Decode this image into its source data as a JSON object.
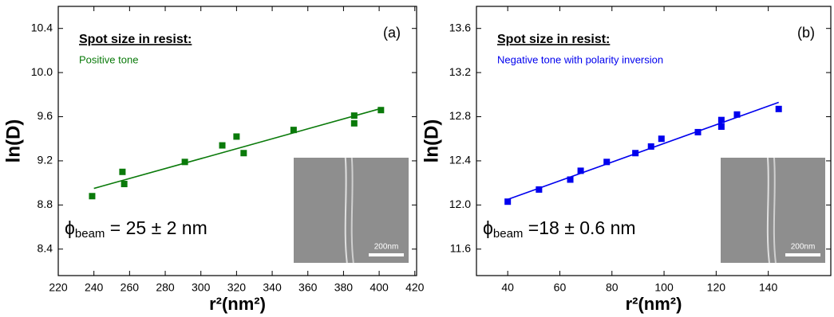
{
  "chart_data": [
    {
      "type": "scatter",
      "color": "#0a7a0a",
      "x": [
        239,
        256,
        257,
        291,
        312,
        320,
        324,
        352,
        386,
        386,
        401
      ],
      "values": [
        8.88,
        9.1,
        8.99,
        9.19,
        9.34,
        9.42,
        9.27,
        9.48,
        9.54,
        9.61,
        9.66
      ],
      "fit": {
        "x": [
          240,
          400
        ],
        "values": [
          8.95,
          9.67
        ]
      },
      "xlim": [
        220,
        421
      ],
      "ylim": [
        8.16,
        10.6
      ],
      "xticks": [
        220,
        240,
        260,
        280,
        300,
        320,
        340,
        360,
        380,
        400,
        420
      ],
      "yticks": [
        {
          "value": 8.4,
          "label": "8.4"
        },
        {
          "value": 8.8,
          "label": "8.8"
        },
        {
          "value": 9.2,
          "label": "9.2"
        },
        {
          "value": 9.6,
          "label": "9.6"
        },
        {
          "value": 10.0,
          "label": "10.0"
        },
        {
          "value": 10.4,
          "label": "10.4"
        }
      ],
      "x_label": "r²(nm²)",
      "y_label": "ln(D)",
      "heading": "Spot size in resist:",
      "subheading": "Positive tone",
      "panel": "(a)",
      "formula": {
        "symbol": "ϕ",
        "subscript": "beam",
        "text": " = 25 ± 2 nm"
      },
      "scale_bar": "200nm"
    },
    {
      "type": "scatter",
      "color": "#0000ee",
      "x": [
        40,
        52,
        64,
        68,
        78,
        89,
        95,
        99,
        113,
        122,
        122,
        128,
        144
      ],
      "values": [
        12.03,
        12.14,
        12.23,
        12.31,
        12.39,
        12.47,
        12.53,
        12.6,
        12.66,
        12.71,
        12.77,
        12.82,
        12.87
      ],
      "fit": {
        "x": [
          40,
          144
        ],
        "values": [
          12.05,
          12.93
        ]
      },
      "xlim": [
        28,
        164
      ],
      "ylim": [
        11.36,
        13.8
      ],
      "xticks": [
        40,
        60,
        80,
        100,
        120,
        140
      ],
      "yticks": [
        {
          "value": 11.6,
          "label": "11.6"
        },
        {
          "value": 12.0,
          "label": "12.0"
        },
        {
          "value": 12.4,
          "label": "12.4"
        },
        {
          "value": 12.8,
          "label": "12.8"
        },
        {
          "value": 13.2,
          "label": "13.2"
        },
        {
          "value": 13.6,
          "label": "13.6"
        }
      ],
      "x_label": "r²(nm²)",
      "y_label": "ln(D)",
      "heading": "Spot size in resist:",
      "subheading": "Negative tone with polarity inversion",
      "panel": "(b)",
      "formula": {
        "symbol": "ϕ",
        "subscript": "beam",
        "text": " =18 ± 0.6 nm"
      },
      "scale_bar": "200nm"
    }
  ]
}
